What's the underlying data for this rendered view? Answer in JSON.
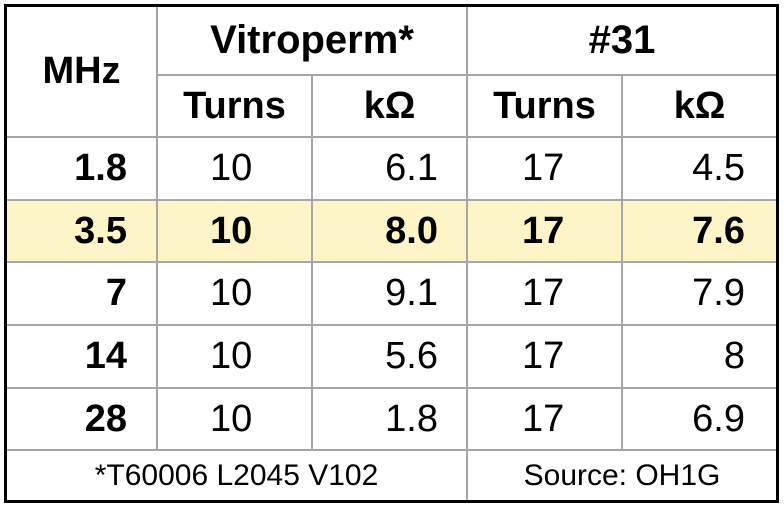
{
  "table": {
    "header": {
      "row_label": "MHz",
      "groups": [
        "Vitroperm*",
        "#31"
      ],
      "subheaders": [
        "Turns",
        "kΩ",
        "Turns",
        "kΩ"
      ]
    },
    "rows": [
      [
        "1.8",
        "10",
        "6.1",
        "17",
        "4.5"
      ],
      [
        "3.5",
        "10",
        "8.0",
        "17",
        "7.6"
      ],
      [
        "7",
        "10",
        "9.1",
        "17",
        "7.9"
      ],
      [
        "14",
        "10",
        "5.6",
        "17",
        "8"
      ],
      [
        "28",
        "10",
        "1.8",
        "17",
        "6.9"
      ]
    ],
    "highlight_row": 1,
    "footer": [
      "*T60006 L2045 V102",
      "Source: OH1G"
    ]
  }
}
